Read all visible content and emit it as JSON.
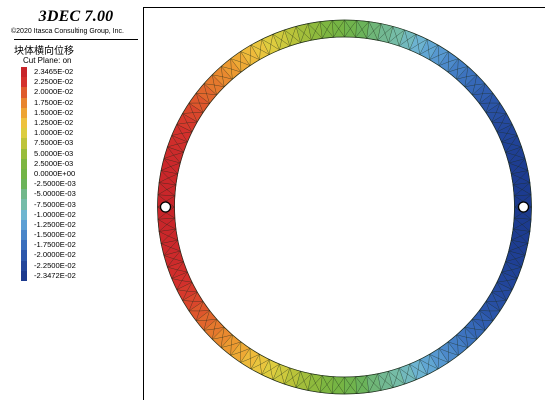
{
  "legend": {
    "app_title": "3DEC 7.00",
    "copyright": "©2020 Itasca Consulting Group, Inc.",
    "quantity_title": "块体横向位移",
    "cut_plane": "Cut Plane: on",
    "entries": [
      {
        "label": "2.3465E-02",
        "color": "#c8252a"
      },
      {
        "label": "2.2500E-02",
        "color": "#d4312c"
      },
      {
        "label": "2.0000E-02",
        "color": "#df5b2c"
      },
      {
        "label": "1.7500E-02",
        "color": "#e8842e"
      },
      {
        "label": "1.5000E-02",
        "color": "#eea433"
      },
      {
        "label": "1.2500E-02",
        "color": "#eec23e"
      },
      {
        "label": "1.0000E-02",
        "color": "#dccd3f"
      },
      {
        "label": "7.5000E-03",
        "color": "#bdc43a"
      },
      {
        "label": "5.0000E-03",
        "color": "#98bc3b"
      },
      {
        "label": "2.5000E-03",
        "color": "#7db641"
      },
      {
        "label": "0.0000E+00",
        "color": "#72b446"
      },
      {
        "label": "-2.5000E-03",
        "color": "#6bb35a"
      },
      {
        "label": "-5.0000E-03",
        "color": "#71b78a"
      },
      {
        "label": "-7.5000E-03",
        "color": "#75bca9"
      },
      {
        "label": "-1.0000E-02",
        "color": "#6fb6d0"
      },
      {
        "label": "-1.2500E-02",
        "color": "#5c9fd4"
      },
      {
        "label": "-1.5000E-02",
        "color": "#4a86c9"
      },
      {
        "label": "-1.7500E-02",
        "color": "#3a6fbd"
      },
      {
        "label": "-2.0000E-02",
        "color": "#2c57ab"
      },
      {
        "label": "-2.2500E-02",
        "color": "#23469b"
      },
      {
        "label": "-2.3472E-02",
        "color": "#1c3a8e"
      }
    ]
  }
}
